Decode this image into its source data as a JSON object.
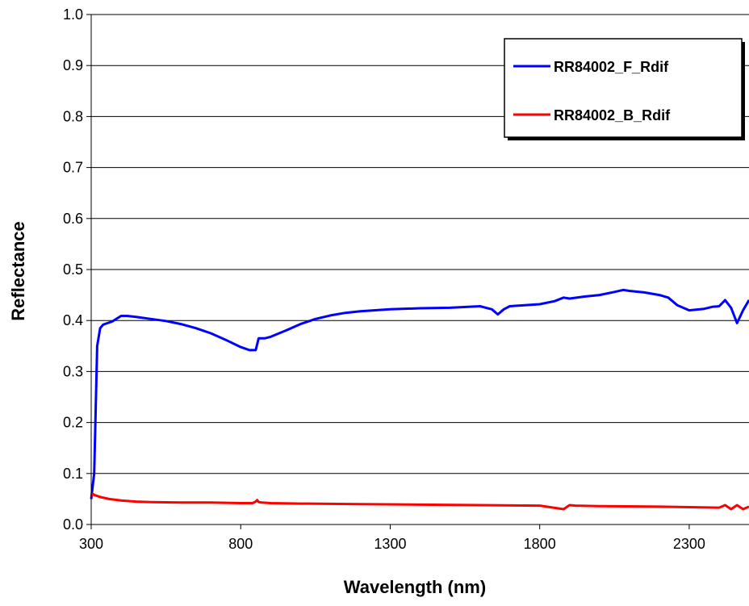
{
  "chart_data": {
    "type": "line",
    "title": "",
    "xlabel": "Wavelength (nm)",
    "ylabel": "Reflectance",
    "xlim": [
      300,
      2500
    ],
    "ylim": [
      0,
      1
    ],
    "xticks": [
      300,
      800,
      1300,
      1800,
      2300
    ],
    "xtick_labels": [
      "300",
      "800",
      "1300",
      "1800",
      "2300"
    ],
    "yticks": [
      0,
      0.1,
      0.2,
      0.3,
      0.4,
      0.5,
      0.6,
      0.7,
      0.8,
      0.9,
      1.0
    ],
    "ytick_labels": [
      "0.0",
      "0.1",
      "0.2",
      "0.3",
      "0.4",
      "0.5",
      "0.6",
      "0.7",
      "0.8",
      "0.9",
      "1.0"
    ],
    "grid": "horizontal",
    "legend": "top-right",
    "series": [
      {
        "name": "RR84002_F_Rdif",
        "color": "#0000ff",
        "x": [
          300,
          310,
          320,
          330,
          340,
          350,
          370,
          400,
          420,
          450,
          500,
          550,
          600,
          650,
          700,
          750,
          800,
          830,
          850,
          860,
          880,
          900,
          950,
          1000,
          1050,
          1100,
          1150,
          1200,
          1300,
          1400,
          1500,
          1600,
          1640,
          1660,
          1680,
          1700,
          1750,
          1800,
          1850,
          1880,
          1900,
          1950,
          2000,
          2050,
          2080,
          2100,
          2150,
          2200,
          2230,
          2260,
          2300,
          2350,
          2380,
          2400,
          2420,
          2440,
          2460,
          2480,
          2500
        ],
        "y": [
          0.05,
          0.1,
          0.35,
          0.385,
          0.392,
          0.394,
          0.398,
          0.409,
          0.409,
          0.407,
          0.403,
          0.399,
          0.393,
          0.385,
          0.375,
          0.362,
          0.348,
          0.342,
          0.342,
          0.365,
          0.365,
          0.368,
          0.38,
          0.393,
          0.403,
          0.41,
          0.415,
          0.418,
          0.422,
          0.424,
          0.425,
          0.428,
          0.422,
          0.412,
          0.422,
          0.428,
          0.43,
          0.432,
          0.438,
          0.445,
          0.443,
          0.447,
          0.45,
          0.456,
          0.46,
          0.458,
          0.455,
          0.45,
          0.445,
          0.43,
          0.42,
          0.423,
          0.427,
          0.428,
          0.44,
          0.425,
          0.395,
          0.42,
          0.44
        ]
      },
      {
        "name": "RR84002_B_Rdif",
        "color": "#ff0000",
        "x": [
          300,
          305,
          310,
          330,
          360,
          400,
          450,
          500,
          600,
          700,
          800,
          840,
          850,
          855,
          860,
          870,
          900,
          1000,
          1200,
          1400,
          1600,
          1800,
          1880,
          1900,
          1920,
          2000,
          2200,
          2300,
          2400,
          2420,
          2440,
          2460,
          2480,
          2500
        ],
        "y": [
          0.055,
          0.06,
          0.058,
          0.054,
          0.05,
          0.047,
          0.045,
          0.044,
          0.043,
          0.043,
          0.042,
          0.042,
          0.045,
          0.048,
          0.044,
          0.043,
          0.042,
          0.041,
          0.04,
          0.039,
          0.038,
          0.037,
          0.03,
          0.038,
          0.037,
          0.036,
          0.035,
          0.034,
          0.033,
          0.038,
          0.03,
          0.038,
          0.03,
          0.035
        ]
      }
    ]
  }
}
